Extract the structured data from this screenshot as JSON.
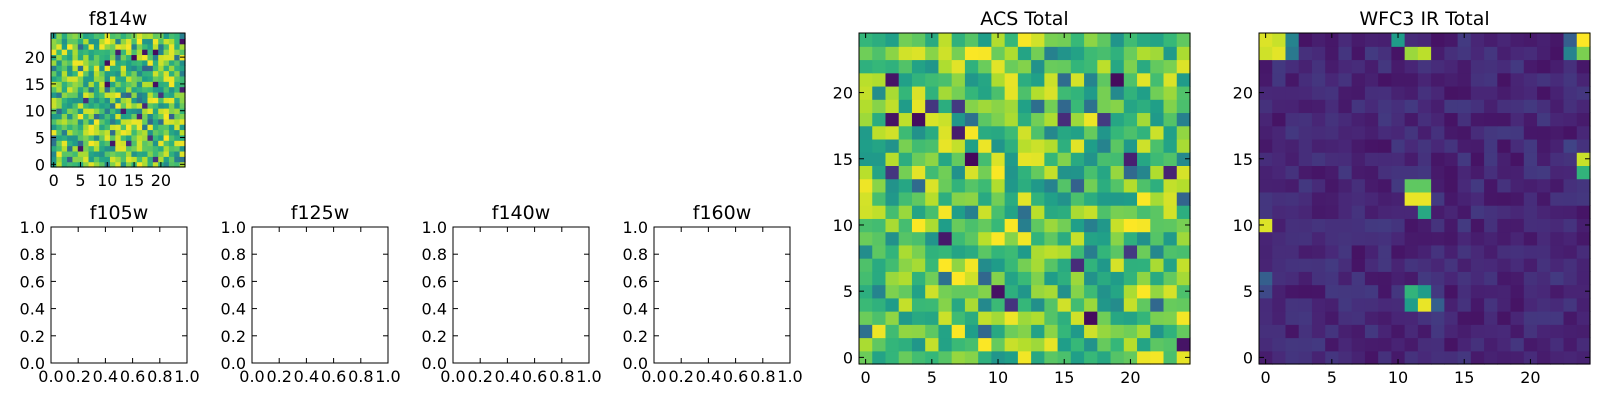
{
  "chart_data": [
    {
      "id": "f814w",
      "type": "heatmap",
      "title": "f814w",
      "colormap": "viridis",
      "grid_size": 25,
      "xlim": [
        -0.5,
        24.5
      ],
      "ylim": [
        -0.5,
        24.5
      ],
      "xticks": [
        0,
        5,
        10,
        15,
        20
      ],
      "yticks": [
        0,
        5,
        10,
        15,
        20
      ],
      "seed": 814,
      "mode": "acs"
    },
    {
      "id": "f105w",
      "type": "empty",
      "title": "f105w",
      "xlim": [
        0,
        1
      ],
      "ylim": [
        0,
        1
      ],
      "xticks": [
        "0.0",
        "0.2",
        "0.4",
        "0.6",
        "0.8",
        "1.0"
      ],
      "yticks": [
        "0.0",
        "0.2",
        "0.4",
        "0.6",
        "0.8",
        "1.0"
      ]
    },
    {
      "id": "f125w",
      "type": "empty",
      "title": "f125w",
      "xlim": [
        0,
        1
      ],
      "ylim": [
        0,
        1
      ],
      "xticks": [
        "0.0",
        "0.2",
        "0.4",
        "0.6",
        "0.8",
        "1.0"
      ],
      "yticks": [
        "0.0",
        "0.2",
        "0.4",
        "0.6",
        "0.8",
        "1.0"
      ]
    },
    {
      "id": "f140w",
      "type": "empty",
      "title": "f140w",
      "xlim": [
        0,
        1
      ],
      "ylim": [
        0,
        1
      ],
      "xticks": [
        "0.0",
        "0.2",
        "0.4",
        "0.6",
        "0.8",
        "1.0"
      ],
      "yticks": [
        "0.0",
        "0.2",
        "0.4",
        "0.6",
        "0.8",
        "1.0"
      ]
    },
    {
      "id": "f160w",
      "type": "empty",
      "title": "f160w",
      "xlim": [
        0,
        1
      ],
      "ylim": [
        0,
        1
      ],
      "xticks": [
        "0.0",
        "0.2",
        "0.4",
        "0.6",
        "0.8",
        "1.0"
      ],
      "yticks": [
        "0.0",
        "0.2",
        "0.4",
        "0.6",
        "0.8",
        "1.0"
      ]
    },
    {
      "id": "acs-total",
      "type": "heatmap",
      "title": "ACS Total",
      "colormap": "viridis",
      "grid_size": 25,
      "xlim": [
        -0.5,
        24.5
      ],
      "ylim": [
        -0.5,
        24.5
      ],
      "xticks": [
        0,
        5,
        10,
        15,
        20
      ],
      "yticks": [
        0,
        5,
        10,
        15,
        20
      ],
      "seed": 1337,
      "mode": "acs"
    },
    {
      "id": "wfc3-ir-total",
      "type": "heatmap",
      "title": "WFC3 IR Total",
      "colormap": "viridis",
      "grid_size": 25,
      "xlim": [
        -0.5,
        24.5
      ],
      "ylim": [
        -0.5,
        24.5
      ],
      "xticks": [
        0,
        5,
        10,
        15,
        20
      ],
      "yticks": [
        0,
        5,
        10,
        15,
        20
      ],
      "seed": 3,
      "mode": "ir",
      "bright_pixels": [
        {
          "x": 0,
          "y": 24,
          "v": 0.95
        },
        {
          "x": 1,
          "y": 24,
          "v": 0.92
        },
        {
          "x": 0,
          "y": 23,
          "v": 0.93
        },
        {
          "x": 1,
          "y": 23,
          "v": 0.96
        },
        {
          "x": 2,
          "y": 24,
          "v": 0.45
        },
        {
          "x": 2,
          "y": 23,
          "v": 0.4
        },
        {
          "x": 11,
          "y": 23,
          "v": 0.85
        },
        {
          "x": 12,
          "y": 23,
          "v": 0.9
        },
        {
          "x": 10,
          "y": 24,
          "v": 0.55
        },
        {
          "x": 23,
          "y": 23,
          "v": 0.45
        },
        {
          "x": 24,
          "y": 23,
          "v": 0.8
        },
        {
          "x": 23,
          "y": 24,
          "v": 0.3
        },
        {
          "x": 24,
          "y": 24,
          "v": 1.0
        },
        {
          "x": 11,
          "y": 13,
          "v": 0.75
        },
        {
          "x": 12,
          "y": 13,
          "v": 0.75
        },
        {
          "x": 11,
          "y": 12,
          "v": 0.97
        },
        {
          "x": 12,
          "y": 12,
          "v": 0.97
        },
        {
          "x": 12,
          "y": 11,
          "v": 0.6
        },
        {
          "x": 0,
          "y": 10,
          "v": 0.95
        },
        {
          "x": 0,
          "y": 6,
          "v": 0.3
        },
        {
          "x": 0,
          "y": 5,
          "v": 0.22
        },
        {
          "x": 11,
          "y": 5,
          "v": 0.65
        },
        {
          "x": 12,
          "y": 5,
          "v": 0.55
        },
        {
          "x": 11,
          "y": 4,
          "v": 0.55
        },
        {
          "x": 12,
          "y": 4,
          "v": 0.97
        },
        {
          "x": 13,
          "y": 4,
          "v": 0.3
        },
        {
          "x": 24,
          "y": 15,
          "v": 0.92
        },
        {
          "x": 24,
          "y": 14,
          "v": 0.65
        },
        {
          "x": 23,
          "y": 16,
          "v": 0.2
        }
      ]
    }
  ]
}
